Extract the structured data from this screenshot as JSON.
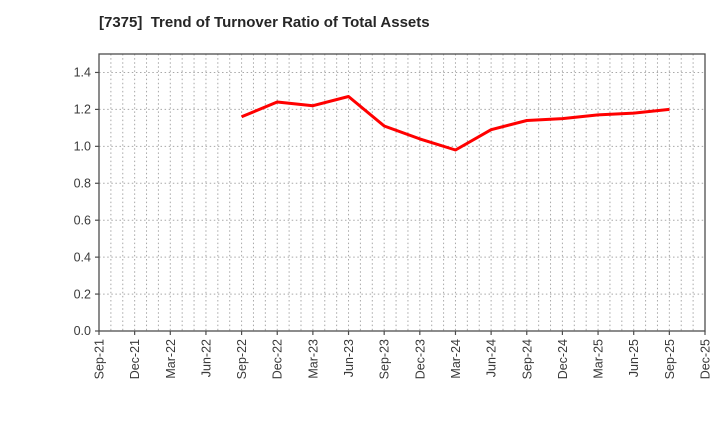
{
  "title": "[7375]  Trend of Turnover Ratio of Total Assets",
  "chart_data": {
    "type": "line",
    "title": "[7375]  Trend of Turnover Ratio of Total Assets",
    "xlabel": "",
    "ylabel": "",
    "categories": [
      "Sep-21",
      "Dec-21",
      "Mar-22",
      "Jun-22",
      "Sep-22",
      "Dec-22",
      "Mar-23",
      "Jun-23",
      "Sep-23",
      "Dec-23",
      "Mar-24",
      "Jun-24",
      "Sep-24",
      "Dec-24",
      "Mar-25",
      "Jun-25",
      "Sep-25",
      "Dec-25"
    ],
    "series": [
      {
        "name": "Turnover Ratio of Total Assets",
        "values": [
          null,
          null,
          null,
          null,
          1.16,
          1.24,
          1.22,
          1.27,
          1.11,
          1.04,
          0.98,
          1.09,
          1.14,
          1.15,
          1.17,
          1.18,
          1.2,
          null
        ]
      }
    ],
    "ylim": [
      0,
      1.5
    ],
    "yticks": [
      "0.0",
      "0.2",
      "0.4",
      "0.6",
      "0.8",
      "1.0",
      "1.2",
      "1.4"
    ],
    "ytick_values": [
      0,
      0.2,
      0.4,
      0.6,
      0.8,
      1.0,
      1.2,
      1.4
    ],
    "x_tick_rotation": 90,
    "minor_x_divisions_per_quarter": 3,
    "grid": "on-dotted",
    "legend_position": "none"
  },
  "colors": {
    "line": "#ff0000",
    "grid": "#a8a8a8",
    "frame": "#4d4d4d",
    "tick_label": "#3a3a3a",
    "title": "#262626",
    "background": "#ffffff"
  }
}
